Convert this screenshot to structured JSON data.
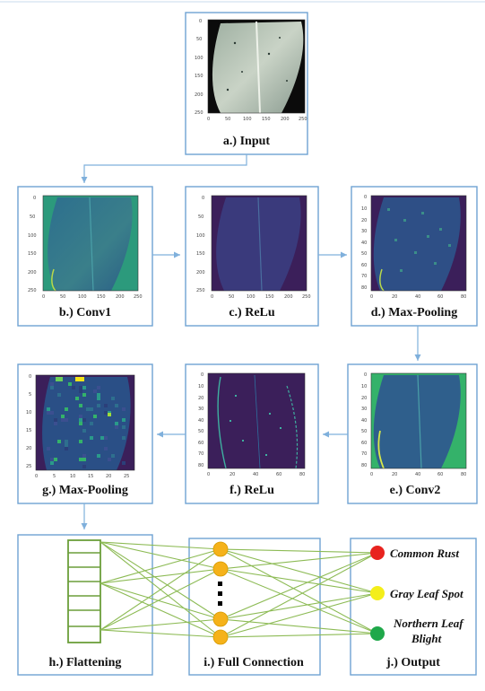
{
  "stages": {
    "input": "a.) Input",
    "conv1": "b.) Conv1",
    "relu1": "c.) ReLu",
    "maxpool1": "d.) Max-Pooling",
    "conv2": "e.) Conv2",
    "relu2": "f.) ReLu",
    "maxpool2": "g.) Max-Pooling",
    "flattening": "h.) Flattening",
    "full_connection": "i.) Full Connection",
    "output": "j.) Output"
  },
  "outputs": [
    {
      "label": "Common Rust",
      "color": "#e8231f"
    },
    {
      "label": "Gray Leaf Spot",
      "color": "#f4ee1a"
    },
    {
      "label": "Northern Leaf",
      "label2": "Blight",
      "color": "#1fa84a"
    }
  ],
  "colors": {
    "border": "#6fa3d2",
    "arrow": "#7fb0dc",
    "connection": "#8dbb55",
    "node": "#f5b21a",
    "viridis_dark": "#3b1f5a",
    "viridis_teal": "#2a9a8a",
    "viridis_green": "#34b26a"
  },
  "axes": {
    "img256": [
      "0",
      "50",
      "100",
      "150",
      "200",
      "250"
    ],
    "img84": [
      "0",
      "10",
      "20",
      "30",
      "40",
      "50",
      "60",
      "70",
      "80"
    ],
    "img84_x": [
      "0",
      "20",
      "40",
      "60",
      "80"
    ],
    "img84_f": [
      "0",
      "10",
      "20",
      "30",
      "40",
      "50",
      "60",
      "70",
      "80"
    ],
    "img27": [
      "0",
      "5",
      "10",
      "15",
      "20",
      "25"
    ]
  }
}
